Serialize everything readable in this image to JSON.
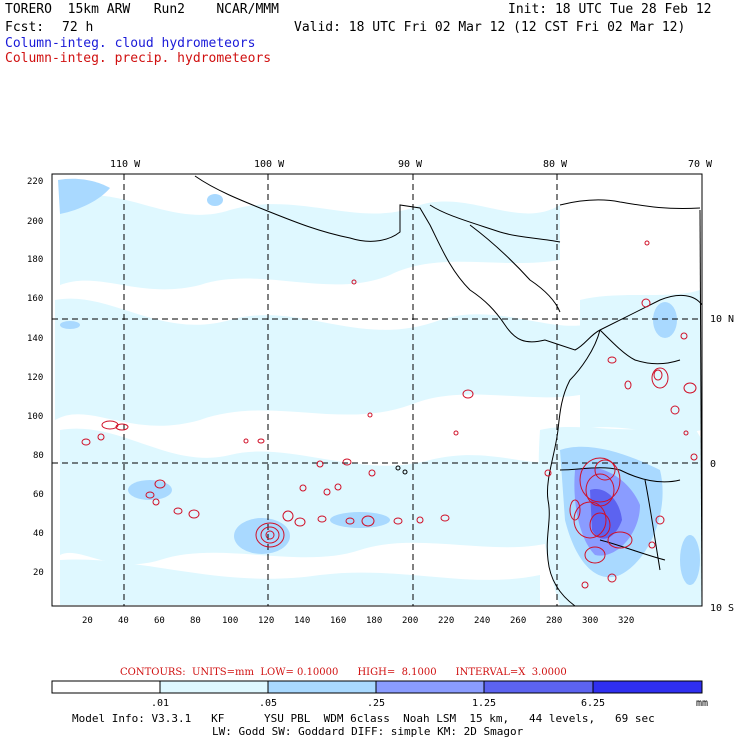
{
  "header": {
    "title_left": "TORERO  15km ARW   Run2    NCAR/MMM",
    "init": "Init: 18 UTC Tue 28 Feb 12",
    "fcst_label": "Fcst:",
    "fcst_value": "72 h",
    "valid": "Valid: 18 UTC Fri 02 Mar 12 (12 CST Fri 02 Mar 12)",
    "legend_cloud": "Column-integ. cloud hydrometeors",
    "legend_precip": "Column-integ. precip. hydrometeors"
  },
  "map": {
    "lon_labels": [
      "110 W",
      "100 W",
      "90 W",
      "80 W",
      "70 W"
    ],
    "lat_labels": [
      "10 N",
      "0",
      "10 S"
    ],
    "x_ticks": [
      "20",
      "40",
      "60",
      "80",
      "100",
      "120",
      "140",
      "160",
      "180",
      "200",
      "220",
      "240",
      "260",
      "280",
      "300",
      "320"
    ],
    "y_ticks": [
      "220",
      "200",
      "180",
      "160",
      "140",
      "120",
      "100",
      "80",
      "60",
      "40",
      "20"
    ],
    "colors": {
      "land_line": "#000000",
      "cloud_light": "#dff8ff",
      "cloud_mid": "#a9d9ff",
      "cloud_strong": "#8a9cff",
      "precip_contour": "#d01028"
    }
  },
  "footer": {
    "contours": "CONTOURS:  UNITS=mm  LOW= 0.10000      HIGH=  8.1000      INTERVAL=X  3.0000",
    "colorbar_labels": [
      ".01",
      ".05",
      ".25",
      "1.25",
      "6.25"
    ],
    "colorbar_unit": "mm",
    "colorbar_colors": [
      "#ffffff",
      "#dff8ff",
      "#a9d9ff",
      "#8a9cff",
      "#5c63f0",
      "#2f2ff0"
    ],
    "model_info_1": "Model Info: V3.3.1   KF      YSU PBL  WDM 6class  Noah LSM  15 km,   44 levels,   69 sec",
    "model_info_2": "LW: Godd SW: Goddard DIFF: simple KM: 2D Smagor"
  }
}
